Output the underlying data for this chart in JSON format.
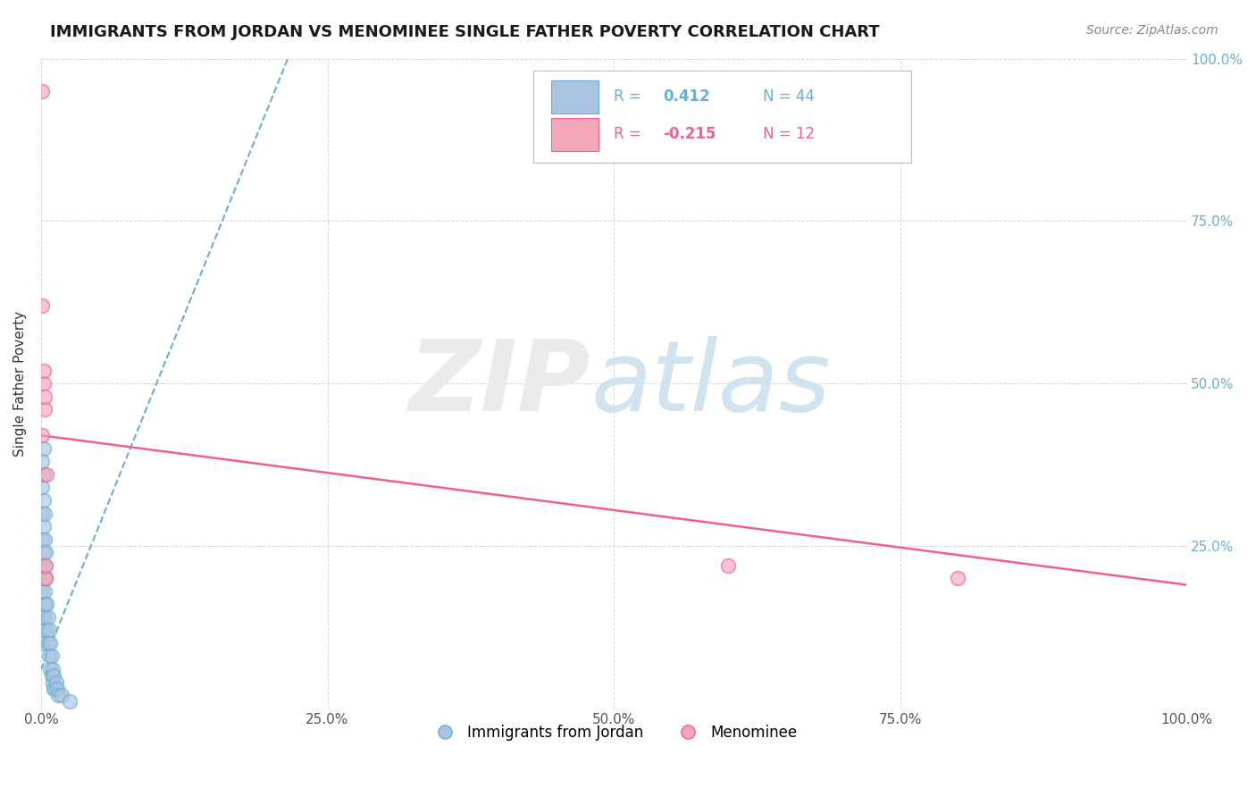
{
  "title": "IMMIGRANTS FROM JORDAN VS MENOMINEE SINGLE FATHER POVERTY CORRELATION CHART",
  "source": "Source: ZipAtlas.com",
  "ylabel": "Single Father Poverty",
  "blue_label": "Immigrants from Jordan",
  "pink_label": "Menominee",
  "blue_R": 0.412,
  "blue_N": 44,
  "pink_R": -0.215,
  "pink_N": 12,
  "blue_color": "#a8c4e0",
  "pink_color": "#f4a7b9",
  "blue_line_color": "#6aaed6",
  "pink_line_color": "#f06090",
  "blue_scatter_x": [
    0.001,
    0.001,
    0.001,
    0.001,
    0.001,
    0.001,
    0.001,
    0.001,
    0.002,
    0.002,
    0.002,
    0.002,
    0.002,
    0.002,
    0.002,
    0.002,
    0.003,
    0.003,
    0.003,
    0.003,
    0.003,
    0.004,
    0.004,
    0.004,
    0.005,
    0.005,
    0.006,
    0.006,
    0.007,
    0.007,
    0.008,
    0.008,
    0.009,
    0.009,
    0.01,
    0.01,
    0.011,
    0.011,
    0.012,
    0.013,
    0.014,
    0.015,
    0.018,
    0.025
  ],
  "blue_scatter_y": [
    0.1,
    0.14,
    0.18,
    0.22,
    0.26,
    0.3,
    0.34,
    0.38,
    0.12,
    0.16,
    0.2,
    0.24,
    0.28,
    0.32,
    0.36,
    0.4,
    0.14,
    0.18,
    0.22,
    0.26,
    0.3,
    0.16,
    0.2,
    0.24,
    0.12,
    0.16,
    0.1,
    0.14,
    0.08,
    0.12,
    0.06,
    0.1,
    0.05,
    0.08,
    0.04,
    0.06,
    0.03,
    0.05,
    0.03,
    0.04,
    0.03,
    0.02,
    0.02,
    0.01
  ],
  "pink_scatter_x": [
    0.001,
    0.001,
    0.002,
    0.002,
    0.003,
    0.003,
    0.004,
    0.004,
    0.005,
    0.6,
    0.8,
    0.001
  ],
  "pink_scatter_y": [
    0.42,
    0.62,
    0.5,
    0.52,
    0.46,
    0.48,
    0.2,
    0.22,
    0.36,
    0.22,
    0.2,
    0.95
  ],
  "xlim": [
    0.0,
    1.0
  ],
  "ylim": [
    0.0,
    1.0
  ],
  "xticks": [
    0.0,
    0.25,
    0.5,
    0.75,
    1.0
  ],
  "yticks": [
    0.0,
    0.25,
    0.5,
    0.75,
    1.0
  ],
  "xticklabels": [
    "0.0%",
    "25.0%",
    "50.0%",
    "75.0%",
    "100.0%"
  ],
  "right_yticklabels": [
    "",
    "25.0%",
    "50.0%",
    "75.0%",
    "100.0%"
  ],
  "blue_trendline_x": [
    0.0,
    0.22
  ],
  "blue_trendline_y": [
    0.06,
    1.02
  ],
  "pink_trendline_x": [
    0.0,
    1.0
  ],
  "pink_trendline_y": [
    0.42,
    0.19
  ]
}
